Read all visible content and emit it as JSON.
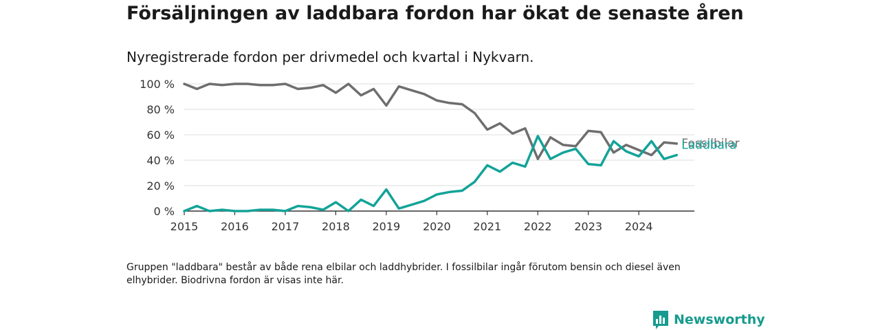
{
  "title": "Försäljningen av laddbara fordon har ökat de senaste åren",
  "subtitle": "Nyregistrerade fordon per drivmedel och kvartal i Nykvarn.",
  "note": "Gruppen \"laddbara\" består av både rena elbilar och laddhybrider. I fossilbilar ingår förutom bensin och diesel även elhybrider. Biodrivna fordon är visas inte här.",
  "logo": {
    "text": "Newsworthy",
    "icon": "bar-chart-logo-icon"
  },
  "colors": {
    "fossil": "#6e6e6e",
    "laddbara": "#13a398",
    "grid": "#dddddd",
    "axis": "#333333",
    "brand": "#169b8e"
  },
  "chart_data": {
    "type": "line",
    "title": "Försäljningen av laddbara fordon har ökat de senaste åren",
    "subtitle": "Nyregistrerade fordon per drivmedel och kvartal i Nykvarn.",
    "xlabel": "",
    "ylabel": "",
    "ylim": [
      0,
      100
    ],
    "xlim": [
      2015,
      2025.1
    ],
    "x_ticks": [
      2015,
      2016,
      2017,
      2018,
      2019,
      2020,
      2021,
      2022,
      2023,
      2024
    ],
    "y_ticks": [
      0,
      20,
      40,
      60,
      80,
      100
    ],
    "y_tick_labels": [
      "0 %",
      "20 %",
      "40 %",
      "60 %",
      "80 %",
      "100 %"
    ],
    "grid": true,
    "x": [
      2015,
      2015.25,
      2015.5,
      2015.75,
      2016,
      2016.25,
      2016.5,
      2016.75,
      2017,
      2017.25,
      2017.5,
      2017.75,
      2018,
      2018.25,
      2018.5,
      2018.75,
      2019,
      2019.25,
      2019.5,
      2019.75,
      2020,
      2020.25,
      2020.5,
      2020.75,
      2021,
      2021.25,
      2021.5,
      2021.75,
      2022,
      2022.25,
      2022.5,
      2022.75,
      2023,
      2023.25,
      2023.5,
      2023.75,
      2024,
      2024.25,
      2024.5,
      2024.75
    ],
    "series": [
      {
        "name": "Fossilbilar",
        "color": "#6e6e6e",
        "values": [
          100,
          96,
          100,
          99,
          100,
          100,
          99,
          99,
          100,
          96,
          97,
          99,
          93,
          100,
          91,
          96,
          83,
          98,
          95,
          92,
          87,
          85,
          84,
          77,
          64,
          69,
          61,
          65,
          41,
          58,
          52,
          51,
          63,
          62,
          46,
          52,
          48,
          44,
          54,
          53
        ]
      },
      {
        "name": "Laddbara",
        "color": "#13a398",
        "values": [
          0,
          4,
          0,
          1,
          0,
          0,
          1,
          1,
          0,
          4,
          3,
          1,
          7,
          0,
          9,
          4,
          17,
          2,
          5,
          8,
          13,
          15,
          16,
          23,
          36,
          31,
          38,
          35,
          59,
          41,
          46,
          49,
          37,
          36,
          55,
          47,
          43,
          55,
          41,
          44
        ]
      }
    ]
  }
}
